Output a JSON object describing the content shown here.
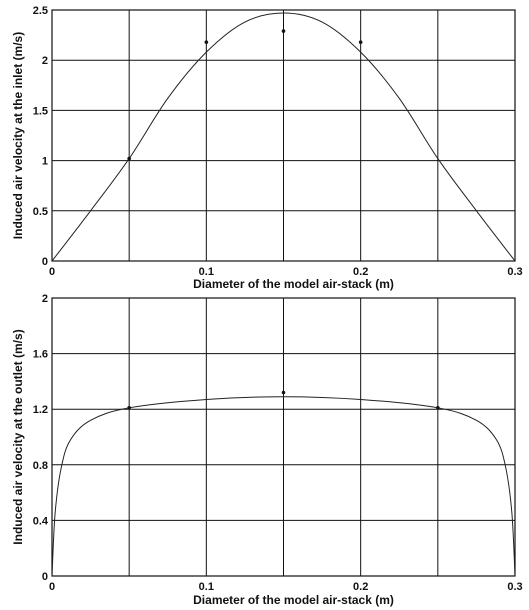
{
  "chart_data": [
    {
      "type": "line",
      "title": "",
      "xlabel": "Diameter of the model air-stack (m)",
      "ylabel": "Induced air velocity at the inlet (m/s)",
      "xlim": [
        0,
        0.3
      ],
      "ylim": [
        0,
        2.5
      ],
      "xticks": [
        0,
        0.1,
        0.2,
        0.3
      ],
      "xtick_labels": [
        "0",
        "0.1",
        "0.2",
        "0.3"
      ],
      "xgrid": [
        0.05,
        0.1,
        0.15,
        0.2,
        0.25
      ],
      "yticks": [
        0,
        0.5,
        1,
        1.5,
        2,
        2.5
      ],
      "ytick_labels": [
        "0",
        "0.5",
        "1",
        "1.5",
        "2",
        "2.5"
      ],
      "grid": true,
      "series": [
        {
          "kind": "line",
          "x": [
            0,
            0.025,
            0.05,
            0.075,
            0.1,
            0.125,
            0.15,
            0.175,
            0.2,
            0.225,
            0.25,
            0.275,
            0.3
          ],
          "values": [
            0,
            0.5,
            1.02,
            1.62,
            2.08,
            2.38,
            2.47,
            2.38,
            2.08,
            1.62,
            1.02,
            0.5,
            0
          ]
        },
        {
          "kind": "points",
          "x": [
            0.05,
            0.1,
            0.15,
            0.2
          ],
          "values": [
            1.02,
            2.18,
            2.29,
            2.18
          ]
        }
      ]
    },
    {
      "type": "line",
      "title": "",
      "xlabel": "Diameter of the model air-stack (m)",
      "ylabel": "Induced air velocity at the outlet (m/s)",
      "xlim": [
        0,
        0.3
      ],
      "ylim": [
        0,
        2
      ],
      "xticks": [
        0,
        0.1,
        0.2,
        0.3
      ],
      "xtick_labels": [
        "0",
        "0.1",
        "0.2",
        "0.3"
      ],
      "xgrid": [
        0.05,
        0.1,
        0.15,
        0.2,
        0.25
      ],
      "yticks": [
        0,
        0.4,
        0.8,
        1.2,
        1.6,
        2
      ],
      "ytick_labels": [
        "0",
        "0.4",
        "0.8",
        "1.2",
        "1.6",
        "2"
      ],
      "grid": true,
      "series": [
        {
          "kind": "line",
          "x": [
            0,
            0.002,
            0.006,
            0.012,
            0.025,
            0.05,
            0.1,
            0.15,
            0.2,
            0.25,
            0.275,
            0.288,
            0.294,
            0.298,
            0.3
          ],
          "values": [
            0,
            0.45,
            0.78,
            0.98,
            1.12,
            1.21,
            1.27,
            1.29,
            1.27,
            1.21,
            1.12,
            0.98,
            0.78,
            0.45,
            0
          ]
        },
        {
          "kind": "points",
          "x": [
            0.05,
            0.15,
            0.25
          ],
          "values": [
            1.21,
            1.32,
            1.21
          ]
        }
      ]
    }
  ]
}
